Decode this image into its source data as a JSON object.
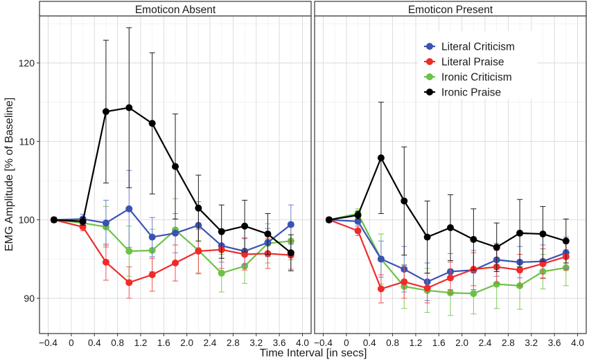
{
  "chart_data": {
    "type": "line",
    "xlabel": "Time Interval [in secs]",
    "ylabel": "EMG Amplitude [% of Baseline]",
    "xlim": [
      -0.55,
      4.15
    ],
    "ylim": [
      85.5,
      126
    ],
    "x_ticks": [
      -0.4,
      0,
      0.4,
      0.8,
      1.2,
      1.6,
      2.0,
      2.4,
      2.8,
      3.2,
      3.6,
      4.0
    ],
    "x_tick_labels": [
      "−0.4",
      "0",
      "0.4",
      "0.8",
      "1.2",
      "1.6",
      "2.0",
      "2.4",
      "2.8",
      "3.2",
      "3.6",
      "4.0"
    ],
    "y_ticks": [
      90,
      100,
      110,
      120
    ],
    "y_tick_labels": [
      "90",
      "100",
      "110",
      "120"
    ],
    "grid": true,
    "legend": {
      "panel": "Emoticon Present",
      "placement": "top-right",
      "entries": [
        "Literal Criticism",
        "Literal Praise",
        "Ironic Criticism",
        "Ironic Praise"
      ]
    },
    "series_styles": {
      "Literal Criticism": {
        "color": "#3a53b3",
        "errcolor": "#6b80d0"
      },
      "Literal Praise": {
        "color": "#ee2b2b",
        "errcolor": "#ee5050"
      },
      "Ironic Criticism": {
        "color": "#6cc245",
        "errcolor": "#7dca58"
      },
      "Ironic Praise": {
        "color": "#000000",
        "errcolor": "#1a1a1a"
      }
    },
    "draw_order": [
      "Ironic Criticism",
      "Literal Criticism",
      "Literal Praise",
      "Ironic Praise"
    ],
    "panels": [
      {
        "title": "Emoticon Absent",
        "series": [
          {
            "name": "Literal Criticism",
            "x": [
              -0.3,
              0.2,
              0.6,
              1.0,
              1.4,
              1.8,
              2.2,
              2.6,
              3.0,
              3.4,
              3.8
            ],
            "y": [
              100,
              100.1,
              99.6,
              101.4,
              97.8,
              98.3,
              99.3,
              96.7,
              96.0,
              97.1,
              99.4
            ],
            "err": [
              0.3,
              0.6,
              2.9,
              4.9,
              2.5,
              2.5,
              3.0,
              2.1,
              1.7,
              1.8,
              2.5
            ]
          },
          {
            "name": "Literal Praise",
            "x": [
              -0.3,
              0.2,
              0.6,
              1.0,
              1.4,
              1.8,
              2.2,
              2.6,
              3.0,
              3.4,
              3.8
            ],
            "y": [
              100,
              99.1,
              94.6,
              92.0,
              93.0,
              94.5,
              96.0,
              96.2,
              95.6,
              95.7,
              95.5
            ],
            "err": [
              0.3,
              0.5,
              2.3,
              2.0,
              2.1,
              2.3,
              2.8,
              2.4,
              2.0,
              1.9,
              1.8
            ]
          },
          {
            "name": "Ironic Criticism",
            "x": [
              -0.3,
              0.2,
              0.6,
              1.0,
              1.4,
              1.8,
              2.2,
              2.6,
              3.0,
              3.4,
              3.8
            ],
            "y": [
              100,
              99.6,
              99.1,
              96.0,
              96.1,
              98.7,
              96.1,
              93.2,
              94.1,
              97.0,
              97.3
            ],
            "err": [
              0.3,
              0.5,
              2.6,
              3.2,
              2.7,
              4.0,
              3.0,
              2.4,
              2.2,
              2.5,
              2.4
            ]
          },
          {
            "name": "Ironic Praise",
            "x": [
              -0.3,
              0.2,
              0.6,
              1.0,
              1.4,
              1.8,
              2.2,
              2.6,
              3.0,
              3.4,
              3.8
            ],
            "y": [
              100,
              99.8,
              113.8,
              114.3,
              112.3,
              106.8,
              101.5,
              98.5,
              99.2,
              98.2,
              95.8
            ],
            "err": [
              0.3,
              0.5,
              9.1,
              10.2,
              9.0,
              6.7,
              4.2,
              3.4,
              3.3,
              2.6,
              2.3
            ]
          }
        ]
      },
      {
        "title": "Emoticon Present",
        "series": [
          {
            "name": "Literal Criticism",
            "x": [
              -0.3,
              0.2,
              0.6,
              1.0,
              1.4,
              1.8,
              2.2,
              2.6,
              3.0,
              3.4,
              3.8
            ],
            "y": [
              100,
              99.8,
              95.0,
              93.7,
              92.1,
              93.4,
              93.6,
              94.9,
              94.6,
              94.7,
              95.8
            ],
            "err": [
              0.3,
              0.6,
              2.3,
              2.9,
              2.4,
              2.3,
              2.5,
              2.1,
              2.0,
              2.1,
              2.0
            ]
          },
          {
            "name": "Literal Praise",
            "x": [
              -0.3,
              0.2,
              0.6,
              1.0,
              1.4,
              1.8,
              2.2,
              2.6,
              3.0,
              3.4,
              3.8
            ],
            "y": [
              100,
              98.6,
              91.2,
              92.1,
              91.3,
              92.6,
              93.7,
              94.0,
              93.6,
              94.4,
              95.3
            ],
            "err": [
              0.3,
              0.6,
              1.8,
              2.1,
              1.9,
              2.0,
              2.1,
              2.1,
              2.0,
              1.9,
              1.7
            ]
          },
          {
            "name": "Ironic Criticism",
            "x": [
              -0.3,
              0.2,
              0.6,
              1.0,
              1.4,
              1.8,
              2.2,
              2.6,
              3.0,
              3.4,
              3.8
            ],
            "y": [
              100,
              100.8,
              95.0,
              91.5,
              91.0,
              90.7,
              90.6,
              91.8,
              91.6,
              93.4,
              93.9
            ],
            "err": [
              0.3,
              0.6,
              3.2,
              2.8,
              2.8,
              2.9,
              2.6,
              3.1,
              3.0,
              2.2,
              2.3
            ]
          },
          {
            "name": "Ironic Praise",
            "x": [
              -0.3,
              0.2,
              0.6,
              1.0,
              1.4,
              1.8,
              2.2,
              2.6,
              3.0,
              3.4,
              3.8
            ],
            "y": [
              100,
              100.6,
              107.9,
              102.4,
              97.8,
              99.0,
              97.5,
              96.5,
              98.3,
              98.2,
              97.3
            ],
            "err": [
              0.3,
              0.5,
              7.1,
              6.9,
              4.6,
              4.2,
              3.9,
              3.1,
              4.3,
              3.5,
              2.8
            ]
          }
        ]
      }
    ]
  }
}
